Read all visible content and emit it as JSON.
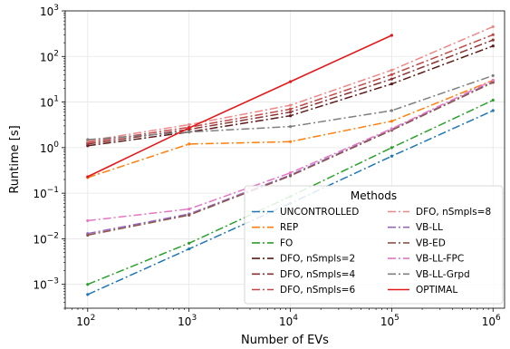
{
  "chart_data": {
    "type": "line",
    "xlabel": "Number of EVs",
    "ylabel": "Runtime [s]",
    "xscale": "log",
    "yscale": "log",
    "xlim": [
      60,
      1300000
    ],
    "ylim": [
      0.0003,
      1000
    ],
    "grid": true,
    "x_ticks": [
      {
        "base": "10",
        "exp": "2",
        "value": 100
      },
      {
        "base": "10",
        "exp": "3",
        "value": 1000
      },
      {
        "base": "10",
        "exp": "4",
        "value": 10000
      },
      {
        "base": "10",
        "exp": "5",
        "value": 100000
      },
      {
        "base": "10",
        "exp": "6",
        "value": 1000000
      }
    ],
    "y_ticks": [
      {
        "base": "10",
        "exp": "−3",
        "value": 0.001
      },
      {
        "base": "10",
        "exp": "−2",
        "value": 0.01
      },
      {
        "base": "10",
        "exp": "−1",
        "value": 0.1
      },
      {
        "base": "10",
        "exp": "0",
        "value": 1
      },
      {
        "base": "10",
        "exp": "1",
        "value": 10
      },
      {
        "base": "10",
        "exp": "2",
        "value": 100
      },
      {
        "base": "10",
        "exp": "3",
        "value": 1000
      }
    ],
    "legend": {
      "title": "Methods",
      "placement": "lower-right",
      "columns": 2
    },
    "series": [
      {
        "name": "UNCONTROLLED",
        "color": "#1f77b4",
        "dash": "dashdot",
        "x": [
          100,
          1000,
          10000,
          100000,
          1000000
        ],
        "y": [
          0.0006,
          0.006,
          0.06,
          0.65,
          6.5
        ]
      },
      {
        "name": "REP",
        "color": "#ff7f0e",
        "dash": "dashdot",
        "x": [
          100,
          1000,
          10000,
          100000,
          1000000
        ],
        "y": [
          0.22,
          1.2,
          1.35,
          3.8,
          30
        ]
      },
      {
        "name": "FO",
        "color": "#2ca02c",
        "dash": "dashdot",
        "x": [
          100,
          1000,
          10000,
          100000,
          1000000
        ],
        "y": [
          0.001,
          0.008,
          0.085,
          1.0,
          11
        ]
      },
      {
        "name": "DFO, nSmpls=2",
        "color": "#5c1a1a",
        "dash": "dashdot",
        "x": [
          100,
          1000,
          10000,
          100000,
          1000000
        ],
        "y": [
          1.1,
          2.2,
          5.0,
          25,
          170
        ]
      },
      {
        "name": "DFO, nSmpls=4",
        "color": "#8b3232",
        "dash": "dashdot",
        "x": [
          100,
          1000,
          10000,
          100000,
          1000000
        ],
        "y": [
          1.2,
          2.5,
          6.0,
          32,
          230
        ]
      },
      {
        "name": "DFO, nSmpls=6",
        "color": "#c04848",
        "dash": "dashdot",
        "x": [
          100,
          1000,
          10000,
          100000,
          1000000
        ],
        "y": [
          1.3,
          2.8,
          7.0,
          40,
          300
        ]
      },
      {
        "name": "DFO, nSmpls=8",
        "color": "#ee8888",
        "dash": "dashdot",
        "x": [
          100,
          1000,
          10000,
          100000,
          1000000
        ],
        "y": [
          1.4,
          3.2,
          8.5,
          50,
          450
        ]
      },
      {
        "name": "VB-LL",
        "color": "#9467bd",
        "dash": "dashdot",
        "x": [
          100,
          1000,
          10000,
          100000,
          1000000
        ],
        "y": [
          0.013,
          0.035,
          0.25,
          2.5,
          28
        ]
      },
      {
        "name": "VB-ED",
        "color": "#8c564b",
        "dash": "dashdot",
        "x": [
          100,
          1000,
          10000,
          100000,
          1000000
        ],
        "y": [
          0.012,
          0.033,
          0.24,
          2.4,
          27
        ]
      },
      {
        "name": "VB-LL-FPC",
        "color": "#e377c2",
        "dash": "dashdot",
        "x": [
          100,
          1000,
          10000,
          100000,
          1000000
        ],
        "y": [
          0.025,
          0.045,
          0.28,
          2.6,
          30
        ]
      },
      {
        "name": "VB-LL-Grpd",
        "color": "#7f7f7f",
        "dash": "dashdot",
        "x": [
          100,
          1000,
          10000,
          100000,
          1000000
        ],
        "y": [
          1.5,
          2.2,
          2.9,
          6.5,
          38
        ]
      },
      {
        "name": "OPTIMAL",
        "color": "#e31a1c",
        "dash": "solid",
        "x": [
          100,
          1000,
          10000,
          100000
        ],
        "y": [
          0.23,
          2.7,
          28,
          290
        ]
      }
    ]
  }
}
